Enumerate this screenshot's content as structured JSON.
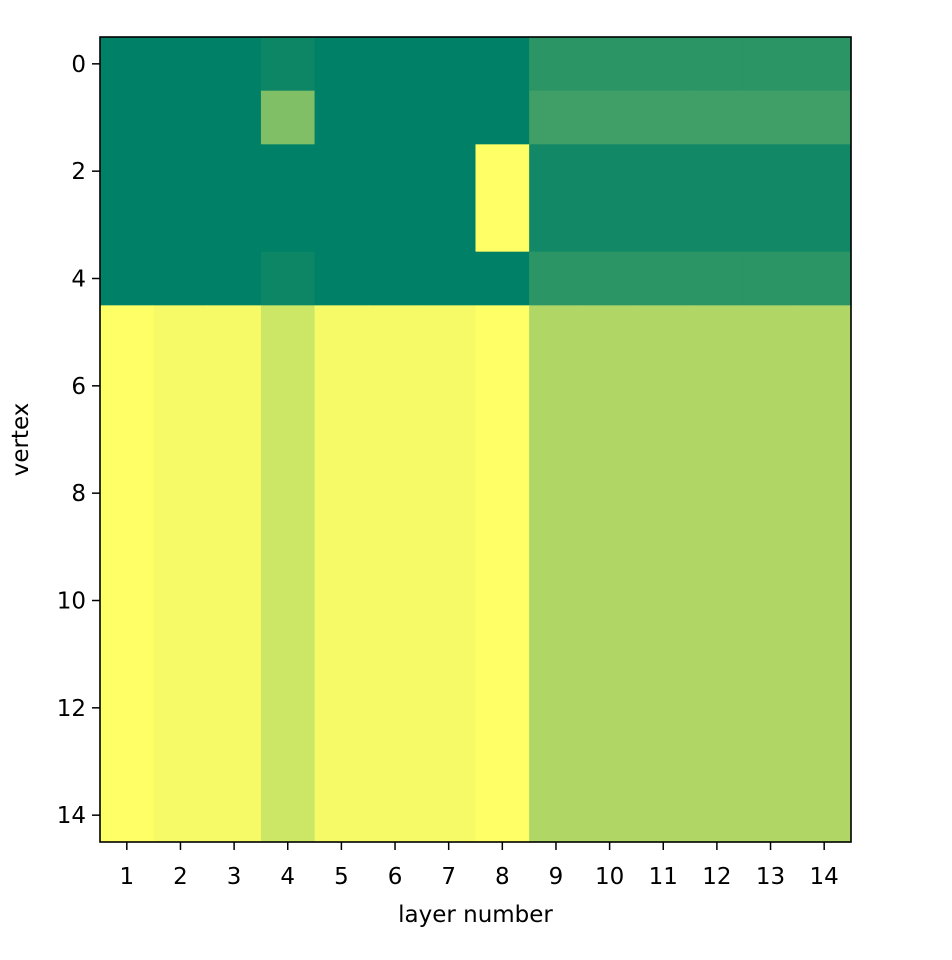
{
  "chart_data": {
    "type": "heatmap",
    "title": "",
    "xlabel": "layer number",
    "ylabel": "vertex",
    "x_ticks": [
      "1",
      "2",
      "3",
      "4",
      "5",
      "6",
      "7",
      "8",
      "9",
      "10",
      "11",
      "12",
      "13",
      "14"
    ],
    "y_ticks": [
      "0",
      "2",
      "4",
      "6",
      "8",
      "10",
      "12",
      "14"
    ],
    "y_tick_values": [
      0,
      2,
      4,
      6,
      8,
      10,
      12,
      14
    ],
    "columns": [
      1,
      2,
      3,
      4,
      5,
      6,
      7,
      8,
      9,
      10,
      11,
      12,
      13,
      14
    ],
    "rows": [
      0,
      1,
      2,
      3,
      4,
      5,
      6,
      7,
      8,
      9,
      10,
      11,
      12,
      13,
      14
    ],
    "colormap": "summer",
    "values": [
      [
        0.0,
        0.0,
        0.0,
        0.05,
        0.0,
        0.0,
        0.0,
        0.0,
        0.17,
        0.17,
        0.17,
        0.17,
        0.17,
        0.17
      ],
      [
        0.0,
        0.0,
        0.0,
        0.5,
        0.0,
        0.0,
        0.0,
        0.0,
        0.25,
        0.25,
        0.25,
        0.25,
        0.25,
        0.25
      ],
      [
        0.0,
        0.0,
        0.0,
        0.0,
        0.0,
        0.0,
        0.0,
        1.0,
        0.07,
        0.07,
        0.07,
        0.07,
        0.07,
        0.07
      ],
      [
        0.0,
        0.0,
        0.0,
        0.0,
        0.0,
        0.0,
        0.0,
        1.0,
        0.07,
        0.07,
        0.07,
        0.07,
        0.07,
        0.07
      ],
      [
        0.0,
        0.0,
        0.0,
        0.05,
        0.0,
        0.0,
        0.0,
        0.0,
        0.17,
        0.17,
        0.17,
        0.17,
        0.17,
        0.17
      ],
      [
        1.0,
        0.96,
        0.96,
        0.8,
        0.96,
        0.96,
        0.96,
        1.0,
        0.69,
        0.69,
        0.69,
        0.69,
        0.69,
        0.69
      ],
      [
        1.0,
        0.96,
        0.96,
        0.8,
        0.96,
        0.96,
        0.96,
        1.0,
        0.69,
        0.69,
        0.69,
        0.69,
        0.69,
        0.69
      ],
      [
        1.0,
        0.96,
        0.96,
        0.8,
        0.96,
        0.96,
        0.96,
        1.0,
        0.69,
        0.69,
        0.69,
        0.69,
        0.69,
        0.69
      ],
      [
        1.0,
        0.96,
        0.96,
        0.8,
        0.96,
        0.96,
        0.96,
        1.0,
        0.69,
        0.69,
        0.69,
        0.69,
        0.69,
        0.69
      ],
      [
        1.0,
        0.96,
        0.96,
        0.8,
        0.96,
        0.96,
        0.96,
        1.0,
        0.69,
        0.69,
        0.69,
        0.69,
        0.69,
        0.69
      ],
      [
        1.0,
        0.96,
        0.96,
        0.8,
        0.96,
        0.96,
        0.96,
        1.0,
        0.69,
        0.69,
        0.69,
        0.69,
        0.69,
        0.69
      ],
      [
        1.0,
        0.96,
        0.96,
        0.8,
        0.96,
        0.96,
        0.96,
        1.0,
        0.69,
        0.69,
        0.69,
        0.69,
        0.69,
        0.69
      ],
      [
        1.0,
        0.96,
        0.96,
        0.8,
        0.96,
        0.96,
        0.96,
        1.0,
        0.69,
        0.69,
        0.69,
        0.69,
        0.69,
        0.69
      ],
      [
        1.0,
        0.96,
        0.96,
        0.8,
        0.96,
        0.96,
        0.96,
        1.0,
        0.69,
        0.69,
        0.69,
        0.69,
        0.69,
        0.69
      ],
      [
        1.0,
        0.96,
        0.96,
        0.8,
        0.96,
        0.96,
        0.96,
        1.0,
        0.69,
        0.69,
        0.69,
        0.69,
        0.69,
        0.69
      ]
    ],
    "legend": "none",
    "grid": false
  }
}
